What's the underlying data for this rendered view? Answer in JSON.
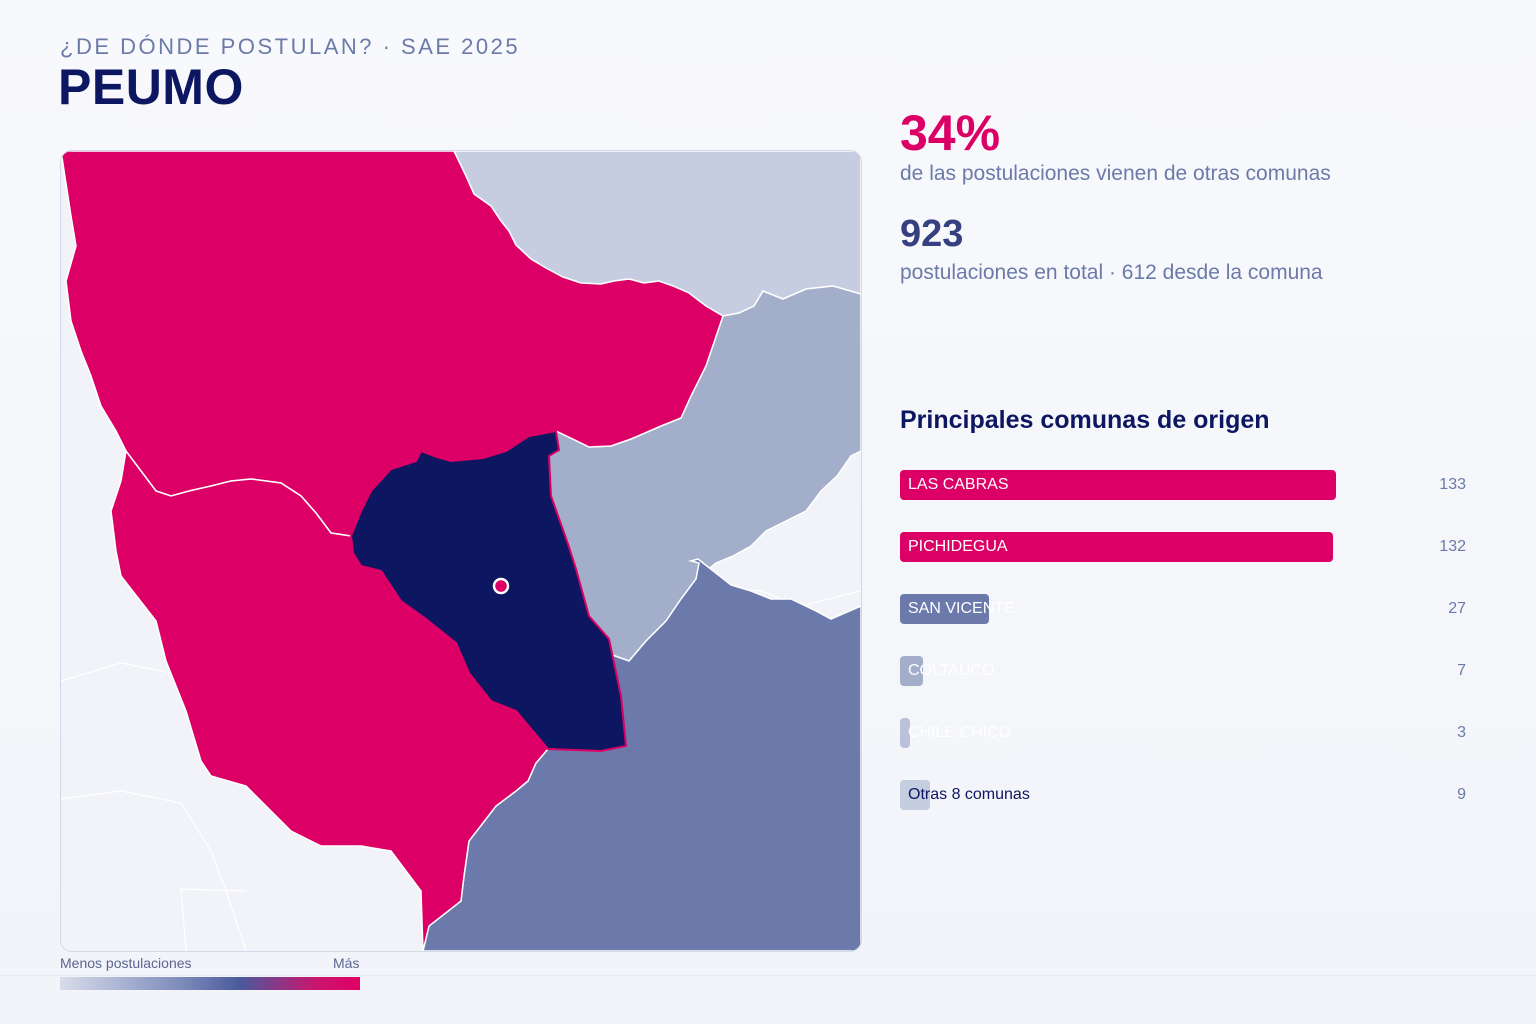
{
  "header": {
    "subtitle": "¿DE DÓNDE POSTULAN? · SAE 2025",
    "title": "PEUMO"
  },
  "stats": {
    "share_other_percent": "34%",
    "share_other_desc": "de las postulaciones vienen de otras comunas",
    "total": "923",
    "total_desc": "postulaciones en total · 612 desde la comuna"
  },
  "origins": {
    "title": "Principales comunas de origen",
    "max": 133,
    "rows": [
      {
        "label": "LAS CABRAS",
        "value": 133,
        "color": "#dc0066",
        "text_color": "#ffffff"
      },
      {
        "label": "PICHIDEGUA",
        "value": 132,
        "color": "#dc0066",
        "text_color": "#ffffff"
      },
      {
        "label": "SAN VICENTE",
        "value": 27,
        "color": "#6b79ab",
        "text_color": "#ffffff"
      },
      {
        "label": "COLTAUCO",
        "value": 7,
        "color": "#a3aecb",
        "text_color": "#ffffff"
      },
      {
        "label": "CHILE CHICO",
        "value": 3,
        "color": "#b9c2da",
        "text_color": "#ffffff"
      },
      {
        "label": "Otras 8 comunas",
        "value": 9,
        "color": "#c5cde0",
        "text_color": "#0d1660"
      }
    ]
  },
  "legend": {
    "low_label": "Menos postulaciones",
    "high_label": "Más"
  },
  "colors": {
    "high": "#dc0066",
    "selected": "#0d1660",
    "medium": "#6b79ab",
    "low": "#a3aecb",
    "lowest": "#c6cde0",
    "background_region": "#f1f3f9"
  }
}
